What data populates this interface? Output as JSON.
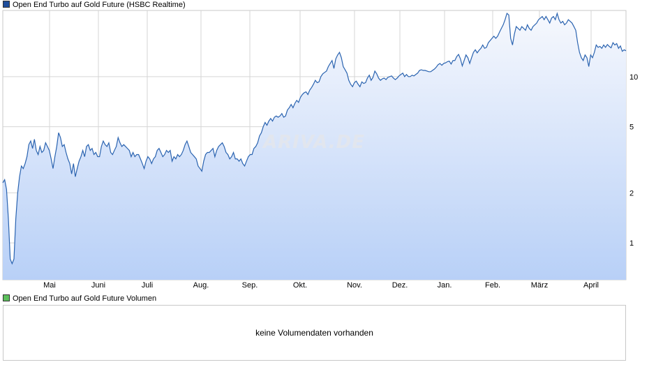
{
  "chart_data": {
    "type": "area",
    "title": "Open End Turbo auf Gold Future  (HSBC Realtime)",
    "yscale": "log",
    "ylim": [
      0.6,
      25
    ],
    "y_ticks": [
      1,
      2,
      5,
      10
    ],
    "x_ticks": [
      "Mai",
      "Juni",
      "Juli",
      "Aug.",
      "Sep.",
      "Okt.",
      "Nov.",
      "Dez.",
      "Jan.",
      "Feb.",
      "März",
      "April"
    ],
    "grid": true,
    "colors": {
      "line": "#2a63b0",
      "fill_top": "#f6f8fd",
      "fill_bottom": "#b8d0f7",
      "grid": "#d5d5d5",
      "legend_price": "#1f4e9c",
      "legend_volume": "#5cbf5c"
    },
    "series": [
      {
        "name": "Open End Turbo auf Gold Future  (HSBC Realtime)",
        "values": [
          2.3,
          2.4,
          2.1,
          1.4,
          0.8,
          0.75,
          0.8,
          1.4,
          2.0,
          2.5,
          2.9,
          2.8,
          3.0,
          3.3,
          3.9,
          4.1,
          3.7,
          4.2,
          3.6,
          3.4,
          3.8,
          3.5,
          3.6,
          4.0,
          3.8,
          3.6,
          3.2,
          2.8,
          3.3,
          3.8,
          4.6,
          4.3,
          3.8,
          3.9,
          3.5,
          3.2,
          3.0,
          2.6,
          3.0,
          2.5,
          2.8,
          3.1,
          3.3,
          3.6,
          3.3,
          3.8,
          3.9,
          3.6,
          3.7,
          3.4,
          3.5,
          3.3,
          3.3,
          3.8,
          4.1,
          3.9,
          3.8,
          4.0,
          3.5,
          3.4,
          3.6,
          3.8,
          4.3,
          4.0,
          3.8,
          3.9,
          3.8,
          3.7,
          3.6,
          3.3,
          3.5,
          3.3,
          3.4,
          3.4,
          3.2,
          3.0,
          2.8,
          3.1,
          3.3,
          3.2,
          3.0,
          3.2,
          3.3,
          3.6,
          3.7,
          3.5,
          3.3,
          3.4,
          3.6,
          3.5,
          3.6,
          3.1,
          3.3,
          3.2,
          3.4,
          3.3,
          3.4,
          3.6,
          3.9,
          4.1,
          3.8,
          3.5,
          3.4,
          3.3,
          3.2,
          2.9,
          2.8,
          2.7,
          3.1,
          3.4,
          3.5,
          3.5,
          3.6,
          3.7,
          3.3,
          3.6,
          3.8,
          3.9,
          4.0,
          3.8,
          3.5,
          3.4,
          3.2,
          3.3,
          3.5,
          3.2,
          3.2,
          3.1,
          3.2,
          3.0,
          2.9,
          3.1,
          3.3,
          3.4,
          3.4,
          3.7,
          3.8,
          4.0,
          4.4,
          4.6,
          5.0,
          5.3,
          5.1,
          5.4,
          5.6,
          5.4,
          5.7,
          5.8,
          5.7,
          5.8,
          6.0,
          5.7,
          5.8,
          6.3,
          6.5,
          6.8,
          6.5,
          6.9,
          7.2,
          7.0,
          7.5,
          7.8,
          8.0,
          8.1,
          7.8,
          8.3,
          8.6,
          9.0,
          9.5,
          9.2,
          9.3,
          10.0,
          10.4,
          10.6,
          10.8,
          11.5,
          12.0,
          12.5,
          11.2,
          12.8,
          13.5,
          14.0,
          13.0,
          11.5,
          11.0,
          10.5,
          9.5,
          9.0,
          8.7,
          9.2,
          9.4,
          9.0,
          8.7,
          9.3,
          9.1,
          9.2,
          9.8,
          10.2,
          9.5,
          9.9,
          10.8,
          10.4,
          9.8,
          9.5,
          9.7,
          9.8,
          9.6,
          9.9,
          10.0,
          10.1,
          9.8,
          9.6,
          9.8,
          10.1,
          10.3,
          10.5,
          10.0,
          10.3,
          10.0,
          10.0,
          10.2,
          10.1,
          10.3,
          10.5,
          10.9,
          11.0,
          10.9,
          10.9,
          10.8,
          10.7,
          10.7,
          10.9,
          11.1,
          11.4,
          11.8,
          12.0,
          11.7,
          12.0,
          12.1,
          12.3,
          12.4,
          11.9,
          12.5,
          12.5,
          13.2,
          13.6,
          12.8,
          11.6,
          12.5,
          13.5,
          13.0,
          12.0,
          13.0,
          14.0,
          14.5,
          13.9,
          14.4,
          14.8,
          15.5,
          14.8,
          15.0,
          16.0,
          16.5,
          17.0,
          17.5,
          17.0,
          17.5,
          18.5,
          19.5,
          20.5,
          22.0,
          24.0,
          23.5,
          17.0,
          15.5,
          18.0,
          20.0,
          19.5,
          19.0,
          20.0,
          19.5,
          19.0,
          20.5,
          19.5,
          19.0,
          20.0,
          20.5,
          21.0,
          22.0,
          22.5,
          23.0,
          22.0,
          23.0,
          22.0,
          21.0,
          22.5,
          23.0,
          22.0,
          24.0,
          22.0,
          21.0,
          21.5,
          20.5,
          21.0,
          22.0,
          21.5,
          21.0,
          20.0,
          19.0,
          16.0,
          14.0,
          13.0,
          12.5,
          13.5,
          13.0,
          11.5,
          13.5,
          13.0,
          14.0,
          15.5,
          15.0,
          15.2,
          14.8,
          15.5,
          15.0,
          15.6,
          15.2,
          14.9,
          16.0,
          15.5,
          15.8,
          14.8,
          15.3,
          14.2,
          14.5,
          14.3
        ]
      }
    ]
  },
  "watermark": "ARIVA.DE",
  "volume_panel": {
    "title": "Open End Turbo auf Gold Future  Volumen",
    "message": "keine Volumendaten vorhanden"
  }
}
